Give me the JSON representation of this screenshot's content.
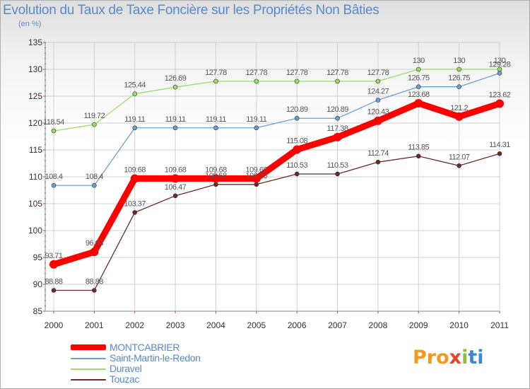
{
  "title": "Evolution du Taux de Taxe Foncière sur les Propriétés Non Bâties",
  "unit_label": "(en %)",
  "logo": {
    "text": "Proxiti",
    "parts": [
      "Pro",
      "x",
      "i",
      "ti"
    ]
  },
  "chart_data": {
    "type": "line",
    "title": "Evolution du Taux de Taxe Foncière sur les Propriétés Non Bâties",
    "ylabel": "(en %)",
    "xlabel": "",
    "categories": [
      "2000",
      "2001",
      "2002",
      "2003",
      "2004",
      "2005",
      "2006",
      "2007",
      "2008",
      "2009",
      "2010",
      "2011"
    ],
    "ylim": [
      85,
      135
    ],
    "yticks": [
      "85",
      "90",
      "95",
      "100",
      "105",
      "110",
      "115",
      "120",
      "125",
      "130",
      "135"
    ],
    "grid": true,
    "legend_position": "bottom-left",
    "series": [
      {
        "name": "MONTCABRIER",
        "color": "#ff0000",
        "values": [
          93.71,
          96.03,
          109.68,
          109.68,
          109.68,
          109.68,
          115.08,
          117.38,
          120.43,
          123.68,
          121.2,
          123.62
        ],
        "labels": [
          "93.71",
          "96.03",
          "109.68",
          "109.68",
          "109.68",
          "109.68",
          "115.08",
          "117.38",
          "120.43",
          "123.68",
          "121.2",
          "123.62"
        ]
      },
      {
        "name": "Saint-Martin-le-Redon",
        "color": "#6a9fd4",
        "values": [
          108.4,
          108.4,
          119.11,
          119.11,
          119.11,
          119.11,
          120.89,
          120.89,
          124.27,
          126.75,
          126.75,
          129.28
        ],
        "labels": [
          "108.4",
          "108.4",
          "119.11",
          "119.11",
          "119.11",
          "119.11",
          "120.89",
          "120.89",
          "124.27",
          "126.75",
          "126.75",
          "129.28"
        ]
      },
      {
        "name": "Duravel",
        "color": "#99dd66",
        "values": [
          118.54,
          119.72,
          125.44,
          126.69,
          127.78,
          127.78,
          127.78,
          127.78,
          127.78,
          130,
          130,
          130
        ],
        "labels": [
          "118.54",
          "119.72",
          "125.44",
          "126.69",
          "127.78",
          "127.78",
          "127.78",
          "127.78",
          "127.78",
          "130",
          "130",
          "130"
        ]
      },
      {
        "name": "Touzac",
        "color": "#6b2a2a",
        "values": [
          88.88,
          88.88,
          103.37,
          106.47,
          108.58,
          108.58,
          110.53,
          110.53,
          112.74,
          113.85,
          112.07,
          114.31
        ],
        "labels": [
          "88.88",
          "88.88",
          "103.37",
          "106.47",
          "108.58",
          "108.58",
          "110.53",
          "110.53",
          "112.74",
          "113.85",
          "112.07",
          "114.31"
        ]
      }
    ]
  }
}
